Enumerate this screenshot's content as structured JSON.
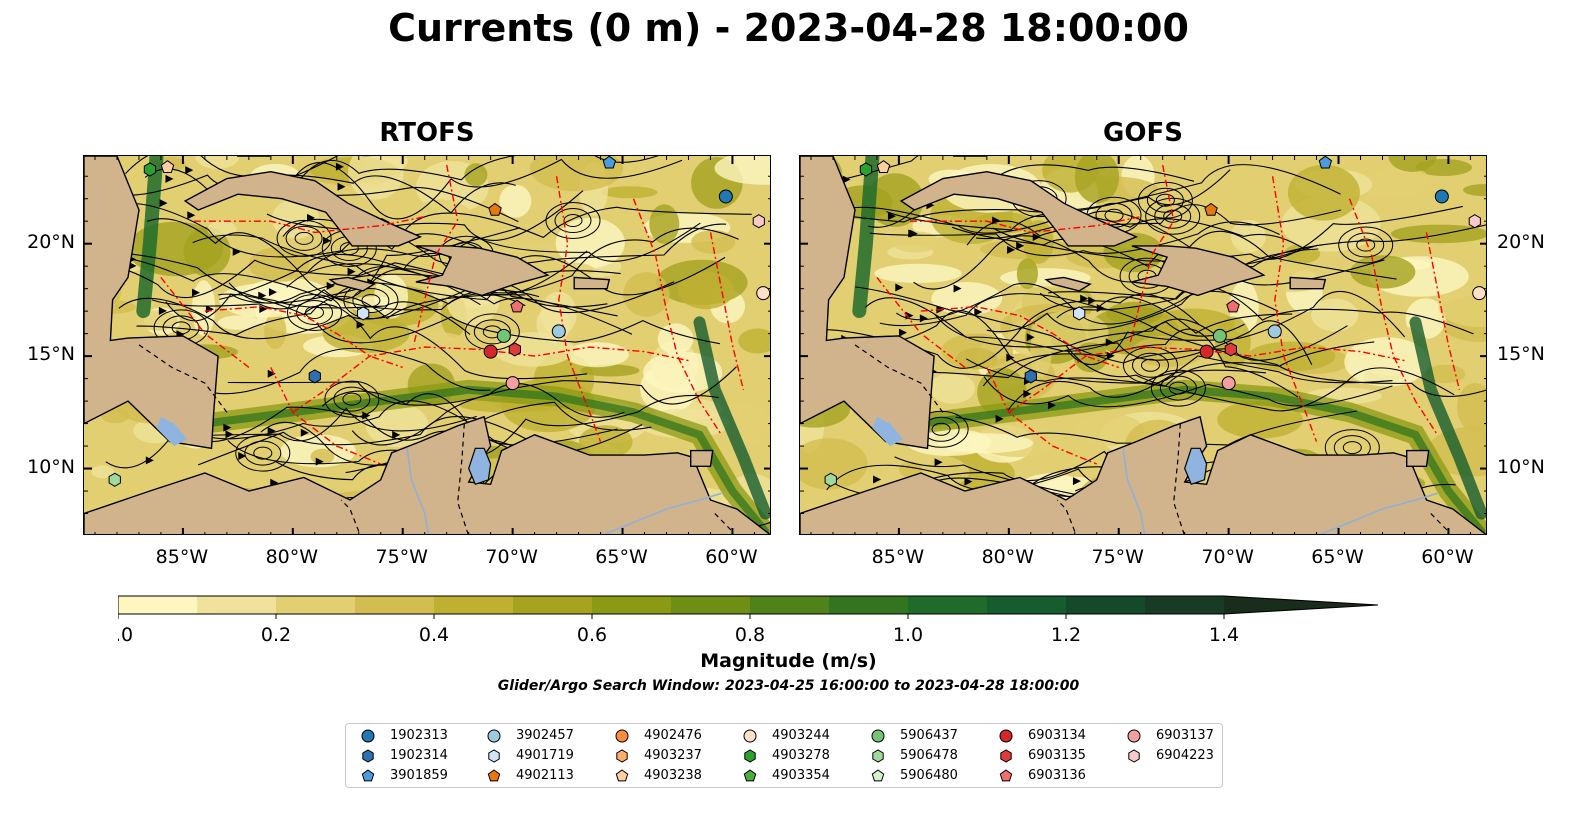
{
  "title": "Currents (0 m) - 2023-04-28 18:00:00",
  "panels": [
    {
      "title": "RTOFS"
    },
    {
      "title": "GOFS"
    }
  ],
  "axes": {
    "lon_ticks": [
      "85°W",
      "80°W",
      "75°W",
      "70°W",
      "65°W",
      "60°W"
    ],
    "lat_ticks": [
      "20°N",
      "15°N",
      "10°N"
    ],
    "lon_values": [
      -85,
      -80,
      -75,
      -70,
      -65,
      -60
    ],
    "lat_values": [
      20,
      15,
      10
    ],
    "lon_range": [
      -89.5,
      -58.2
    ],
    "lat_range": [
      7.0,
      23.9
    ]
  },
  "colorbar": {
    "label": "Magnitude (m/s)",
    "ticks": [
      "0.0",
      "0.2",
      "0.4",
      "0.6",
      "0.8",
      "1.0",
      "1.2",
      "1.4"
    ],
    "tick_values": [
      0.0,
      0.2,
      0.4,
      0.6,
      0.8,
      1.0,
      1.2,
      1.4
    ],
    "range": [
      0.0,
      1.5
    ],
    "extend": "max",
    "colors": [
      "#fdf6c0",
      "#f0e29a",
      "#e2cf72",
      "#d3bd50",
      "#bfb032",
      "#a5a320",
      "#8b9a14",
      "#6e8e14",
      "#4f8218",
      "#33741e",
      "#1f6b2c",
      "#155d2e",
      "#144a2a",
      "#173b24",
      "#1a2c1b"
    ]
  },
  "search_window": "Glider/Argo Search Window: 2023-04-25 16:00:00 to 2023-04-28 18:00:00",
  "colors": {
    "land": "#d2b48c",
    "lake": "#8fb4e0",
    "eez": "#ff0000",
    "ocean_low": "#ecdc8c"
  },
  "legend": [
    {
      "label": "1902313",
      "marker": "circle",
      "color": "#1f77b4"
    },
    {
      "label": "1902314",
      "marker": "hexagon",
      "color": "#2d6fb0"
    },
    {
      "label": "3901859",
      "marker": "pentagon",
      "color": "#4a9be0"
    },
    {
      "label": "3902457",
      "marker": "circle",
      "color": "#9ecae1"
    },
    {
      "label": "4901719",
      "marker": "hexagon",
      "color": "#cfe5f7"
    },
    {
      "label": "4902113",
      "marker": "pentagon",
      "color": "#e6780f"
    },
    {
      "label": "4902476",
      "marker": "circle",
      "color": "#fd8d3c"
    },
    {
      "label": "4903237",
      "marker": "hexagon",
      "color": "#fdae6b"
    },
    {
      "label": "4903238",
      "marker": "pentagon",
      "color": "#fdd0a2"
    },
    {
      "label": "4903244",
      "marker": "circle",
      "color": "#fde0c5"
    },
    {
      "label": "4903278",
      "marker": "hexagon",
      "color": "#2ca02c"
    },
    {
      "label": "4903354",
      "marker": "pentagon",
      "color": "#4cae3c"
    },
    {
      "label": "5906437",
      "marker": "circle",
      "color": "#74c476"
    },
    {
      "label": "5906478",
      "marker": "hexagon",
      "color": "#a1d99b"
    },
    {
      "label": "5906480",
      "marker": "pentagon",
      "color": "#d4f2cc"
    },
    {
      "label": "6903134",
      "marker": "circle",
      "color": "#d62728"
    },
    {
      "label": "6903135",
      "marker": "hexagon",
      "color": "#de3b3b"
    },
    {
      "label": "6903136",
      "marker": "pentagon",
      "color": "#ef6f6f"
    },
    {
      "label": "6903137",
      "marker": "circle",
      "color": "#f4a0a0"
    },
    {
      "label": "6904223",
      "marker": "hexagon",
      "color": "#f9c9c9"
    }
  ],
  "floats": [
    {
      "id": "1902313",
      "lon": -60.3,
      "lat": 22.1
    },
    {
      "id": "1902314",
      "lon": -79.0,
      "lat": 14.1
    },
    {
      "id": "3901859",
      "lon": -65.6,
      "lat": 23.6
    },
    {
      "id": "3902457",
      "lon": -67.9,
      "lat": 16.1
    },
    {
      "id": "4901719",
      "lon": -76.8,
      "lat": 16.9
    },
    {
      "id": "4902113",
      "lon": -70.8,
      "lat": 21.5
    },
    {
      "id": "4903238",
      "lon": -85.7,
      "lat": 23.4
    },
    {
      "id": "4903278",
      "lon": -86.5,
      "lat": 23.3
    },
    {
      "id": "5906437",
      "lon": -70.4,
      "lat": 15.9
    },
    {
      "id": "5906478",
      "lon": -88.1,
      "lat": 9.5
    },
    {
      "id": "6903134",
      "lon": -71.0,
      "lat": 15.2
    },
    {
      "id": "6903135",
      "lon": -69.9,
      "lat": 15.3
    },
    {
      "id": "6903136",
      "lon": -69.8,
      "lat": 17.2
    },
    {
      "id": "6903137",
      "lon": -70.0,
      "lat": 13.8
    },
    {
      "id": "6904223",
      "lon": -58.8,
      "lat": 21.0
    },
    {
      "id": "4903244",
      "lon": -58.6,
      "lat": 17.8
    }
  ]
}
